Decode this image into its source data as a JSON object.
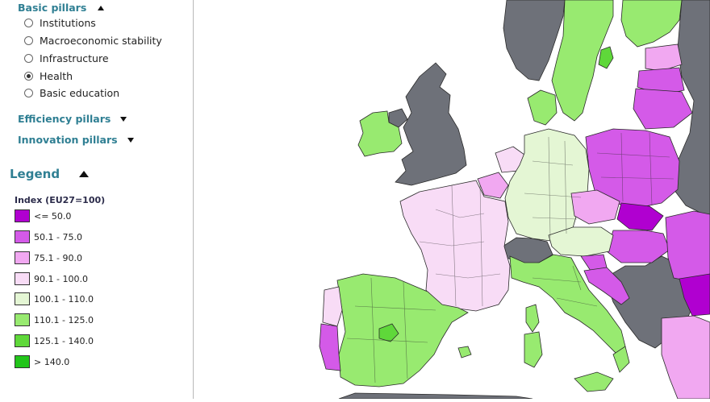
{
  "basic": {
    "title": "Basic pillars",
    "options": [
      {
        "label": "Institutions",
        "checked": false
      },
      {
        "label": "Macroeconomic stability",
        "checked": false
      },
      {
        "label": "Infrastructure",
        "checked": false
      },
      {
        "label": "Health",
        "checked": true
      },
      {
        "label": "Basic education",
        "checked": false
      }
    ]
  },
  "efficiency": {
    "title": "Efficiency pillars"
  },
  "innovation": {
    "title": "Innovation pillars"
  },
  "legend": {
    "title": "Legend",
    "subtitle": "Index (EU27=100)",
    "items": [
      {
        "label": "<= 50.0",
        "color": "#b000d0"
      },
      {
        "label": "50.1 - 75.0",
        "color": "#d45ae8"
      },
      {
        "label": "75.1 - 90.0",
        "color": "#f1a8f1"
      },
      {
        "label": "90.1 - 100.0",
        "color": "#f8dcf6"
      },
      {
        "label": "100.1 - 110.0",
        "color": "#e4f6d4"
      },
      {
        "label": "110.1 - 125.0",
        "color": "#98ea70"
      },
      {
        "label": "125.1 - 140.0",
        "color": "#5fd83a"
      },
      {
        "label": "> 140.0",
        "color": "#22c51a"
      }
    ]
  },
  "map": {
    "sea_color": "#ffffff",
    "no_data_color": "#6e7179",
    "border_color": "#2a2a2a"
  }
}
